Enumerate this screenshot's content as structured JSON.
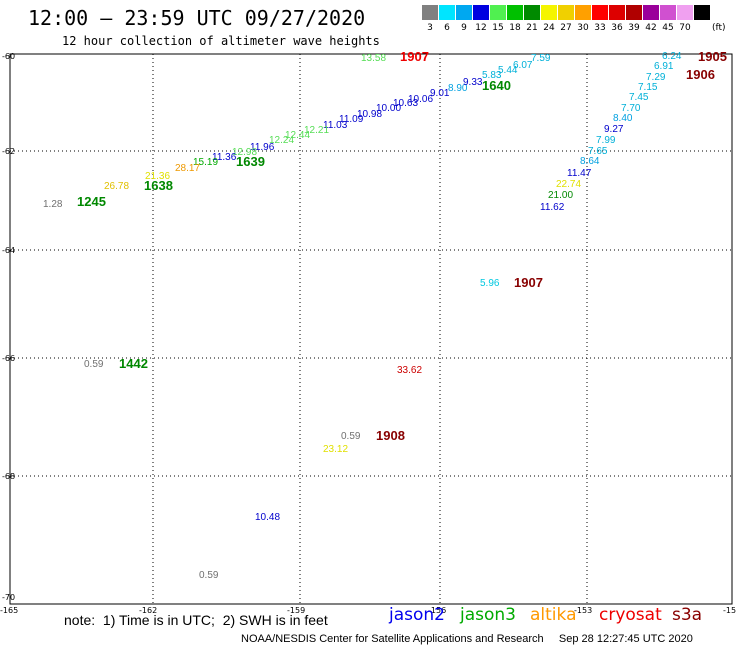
{
  "header": {
    "title": "12:00 – 23:59 UTC 09/27/2020",
    "subtitle": "12 hour collection of altimeter wave heights"
  },
  "scale": {
    "unit": "(ft)",
    "steps": [
      {
        "label": "3",
        "color": "#808080"
      },
      {
        "label": "6",
        "color": "#00e5ff"
      },
      {
        "label": "9",
        "color": "#00a8f0"
      },
      {
        "label": "12",
        "color": "#0000e0"
      },
      {
        "label": "15",
        "color": "#50f050"
      },
      {
        "label": "18",
        "color": "#00c000"
      },
      {
        "label": "21",
        "color": "#008a00"
      },
      {
        "label": "24",
        "color": "#f5f500"
      },
      {
        "label": "27",
        "color": "#f0d000"
      },
      {
        "label": "30",
        "color": "#ffa000"
      },
      {
        "label": "33",
        "color": "#ff0000"
      },
      {
        "label": "36",
        "color": "#dd0000"
      },
      {
        "label": "39",
        "color": "#b00000"
      },
      {
        "label": "42",
        "color": "#9a009a"
      },
      {
        "label": "45",
        "color": "#d050d0"
      },
      {
        "label": "70",
        "color": "#f0a0f0"
      },
      {
        "label": "",
        "color": "#000000"
      }
    ]
  },
  "axes": {
    "lat_labels": [
      "-60",
      "-62",
      "-64",
      "-66",
      "-68",
      "-70"
    ],
    "lon_labels": [
      "-165",
      "-162",
      "-159",
      "-156",
      "-153",
      "-15"
    ]
  },
  "observations": [
    {
      "text": "13.58",
      "color": "#55dd55"
    },
    {
      "text": "1907",
      "color": "#ee0000",
      "bold": true
    },
    {
      "text": "7.59",
      "color": "#00b0d8"
    },
    {
      "text": "6.07",
      "color": "#00b0d8"
    },
    {
      "text": "5.44",
      "color": "#00b0d8"
    },
    {
      "text": "5.83",
      "color": "#00b0d8"
    },
    {
      "text": "1640",
      "color": "#008800",
      "bold": true
    },
    {
      "text": "8.90",
      "color": "#00a0e0"
    },
    {
      "text": "9.33",
      "color": "#0000cc"
    },
    {
      "text": "9.01",
      "color": "#0000cc"
    },
    {
      "text": "10.06",
      "color": "#0000cc"
    },
    {
      "text": "10.63",
      "color": "#0000cc"
    },
    {
      "text": "10.00",
      "color": "#0000cc"
    },
    {
      "text": "10.98",
      "color": "#0000cc"
    },
    {
      "text": "11.09",
      "color": "#0000cc"
    },
    {
      "text": "11.03",
      "color": "#0000cc"
    },
    {
      "text": "12.21",
      "color": "#55dd55"
    },
    {
      "text": "12.44",
      "color": "#55dd55"
    },
    {
      "text": "12.24",
      "color": "#55dd55"
    },
    {
      "text": "11.96",
      "color": "#0000cc"
    },
    {
      "text": "12.98",
      "color": "#55dd55"
    },
    {
      "text": "11.36",
      "color": "#0000cc"
    },
    {
      "text": "15.19",
      "color": "#00aa00"
    },
    {
      "text": "1639",
      "color": "#008800",
      "bold": true
    },
    {
      "text": "28.17",
      "color": "#ee9900"
    },
    {
      "text": "21.36",
      "color": "#e0e000"
    },
    {
      "text": "26.78",
      "color": "#e0c000"
    },
    {
      "text": "1638",
      "color": "#008800",
      "bold": true
    },
    {
      "text": "1.28",
      "color": "#707070"
    },
    {
      "text": "1245",
      "color": "#008800",
      "bold": true
    },
    {
      "text": "6.24",
      "color": "#00b0d8"
    },
    {
      "text": "1905",
      "color": "#880000",
      "bold": true
    },
    {
      "text": "6.91",
      "color": "#00b0d8"
    },
    {
      "text": "1906",
      "color": "#880000",
      "bold": true
    },
    {
      "text": "7.29",
      "color": "#00b0d8"
    },
    {
      "text": "7.15",
      "color": "#00b0d8"
    },
    {
      "text": "7.45",
      "color": "#00b0d8"
    },
    {
      "text": "7.70",
      "color": "#00b0d8"
    },
    {
      "text": "8.40",
      "color": "#00a0e0"
    },
    {
      "text": "9.27",
      "color": "#0000cc"
    },
    {
      "text": "7.99",
      "color": "#00b0d8"
    },
    {
      "text": "7.65",
      "color": "#00b0d8"
    },
    {
      "text": "8.64",
      "color": "#00a0e0"
    },
    {
      "text": "11.47",
      "color": "#0000cc"
    },
    {
      "text": "22.74",
      "color": "#e0e000"
    },
    {
      "text": "21.00",
      "color": "#008800"
    },
    {
      "text": "11.62",
      "color": "#0000cc"
    },
    {
      "text": "5.96",
      "color": "#00c8e0"
    },
    {
      "text": "1907",
      "color": "#880000",
      "bold": true
    },
    {
      "text": "0.59",
      "color": "#707070"
    },
    {
      "text": "1442",
      "color": "#008800",
      "bold": true
    },
    {
      "text": "33.62",
      "color": "#cc0000"
    },
    {
      "text": "0.59",
      "color": "#707070"
    },
    {
      "text": "1908",
      "color": "#880000",
      "bold": true
    },
    {
      "text": "23.12",
      "color": "#e0e000"
    },
    {
      "text": "10.48",
      "color": "#0000cc"
    },
    {
      "text": "0.59",
      "color": "#707070"
    }
  ],
  "footer": {
    "note": "note:  1) Time is in UTC;  2) SWH is in feet",
    "satellites": [
      {
        "name": "jason2",
        "color": "#0000ee"
      },
      {
        "name": "jason3",
        "color": "#00aa00"
      },
      {
        "name": "altika",
        "color": "#ff9900"
      },
      {
        "name": "cryosat",
        "color": "#ee0000"
      },
      {
        "name": "s3a",
        "color": "#880000"
      }
    ],
    "credit": "NOAA/NESDIS Center for Satellite Applications and Research     Sep 28 12:27:45 UTC 2020"
  }
}
